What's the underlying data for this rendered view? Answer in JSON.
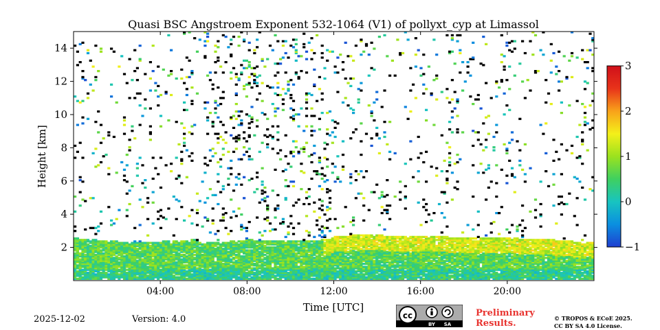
{
  "chart_data": {
    "type": "heatmap",
    "title": "Quasi BSC Angstroem Exponent 532-1064 (V1) of pollyxt_cyp at Limassol",
    "xlabel": "Time [UTC]",
    "ylabel": "Height [km]",
    "xlim_hours": [
      0,
      24
    ],
    "ylim_km": [
      0,
      15
    ],
    "x_ticks": [
      {
        "hour": 4,
        "label": "04:00"
      },
      {
        "hour": 8,
        "label": "08:00"
      },
      {
        "hour": 12,
        "label": "12:00"
      },
      {
        "hour": 16,
        "label": "16:00"
      },
      {
        "hour": 20,
        "label": "20:00"
      }
    ],
    "y_ticks": [
      {
        "km": 2,
        "label": "2"
      },
      {
        "km": 4,
        "label": "4"
      },
      {
        "km": 6,
        "label": "6"
      },
      {
        "km": 8,
        "label": "8"
      },
      {
        "km": 10,
        "label": "10"
      },
      {
        "km": 12,
        "label": "12"
      },
      {
        "km": 14,
        "label": "14"
      }
    ],
    "colorbar": {
      "range": [
        -1,
        3
      ],
      "ticks": [
        {
          "value": 3,
          "label": "3"
        },
        {
          "value": 2,
          "label": "2"
        },
        {
          "value": 1,
          "label": "1"
        },
        {
          "value": 0,
          "label": "0"
        },
        {
          "value": -1,
          "label": "−1"
        }
      ],
      "colormap": [
        "#1f3fd0",
        "#0a8fe0",
        "#18c4c0",
        "#3fd060",
        "#9be21e",
        "#f4f01a",
        "#f8a21a",
        "#e8331a",
        "#d0101a"
      ]
    },
    "aerosol_layer": {
      "description": "layer top height (km) vs time (hours UTC)",
      "top": [
        [
          0,
          2.5
        ],
        [
          2,
          2.3
        ],
        [
          4,
          2.3
        ],
        [
          5.5,
          2.4
        ],
        [
          6,
          2.2
        ],
        [
          8,
          2.4
        ],
        [
          10,
          2.3
        ],
        [
          11.5,
          2.4
        ],
        [
          12,
          2.6
        ],
        [
          13,
          2.7
        ],
        [
          16,
          2.6
        ],
        [
          20,
          2.5
        ],
        [
          22,
          2.4
        ],
        [
          24,
          2.2
        ]
      ]
    },
    "dominant_value_layer": 0.6,
    "dominant_value_upper": 0.3
  },
  "footer": {
    "date": "2025-12-02",
    "version": "Version: 4.0",
    "license_badge": "cc BY SA",
    "preliminary_line1": "Preliminary",
    "preliminary_line2": "Results.",
    "copyright_line1": "© TROPOS & ECoE 2025.",
    "copyright_line2": "CC BY SA 4.0 License."
  }
}
